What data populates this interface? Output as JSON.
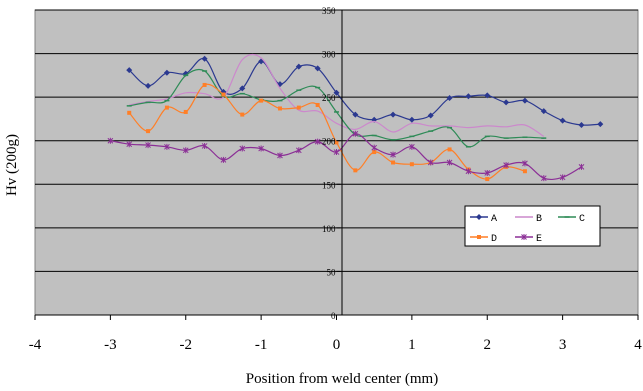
{
  "chart_data": {
    "type": "line",
    "title": "",
    "xlabel": "Position from weld center (mm)",
    "ylabel": "Hv (200g)",
    "xlim": [
      -4,
      4
    ],
    "ylim": [
      0,
      350
    ],
    "x_ticks": [
      "-4",
      "-3",
      "-2",
      "-1",
      "0",
      "1",
      "2",
      "3",
      "4"
    ],
    "y_ticks": [
      "0",
      "50",
      "100",
      "150",
      "200",
      "250",
      "300",
      "350"
    ],
    "grid": "horizontal",
    "legend_placement": "lower-right inside plot",
    "plot_background": "#c0c0c0",
    "series": [
      {
        "name": "A",
        "color": "#2b3990",
        "marker": "diamond",
        "points": [
          [
            -2.75,
            281
          ],
          [
            -2.5,
            263
          ],
          [
            -2.25,
            278
          ],
          [
            -2,
            277
          ],
          [
            -1.75,
            294
          ],
          [
            -1.5,
            256
          ],
          [
            -1.25,
            260
          ],
          [
            -1,
            291
          ],
          [
            -0.75,
            265
          ],
          [
            -0.5,
            285
          ],
          [
            -0.25,
            283
          ],
          [
            0,
            255
          ],
          [
            0.25,
            230
          ],
          [
            0.5,
            224
          ],
          [
            0.75,
            230
          ],
          [
            1,
            224
          ],
          [
            1.25,
            229
          ],
          [
            1.5,
            249
          ],
          [
            1.75,
            251
          ],
          [
            2,
            252
          ],
          [
            2.25,
            244
          ],
          [
            2.5,
            246
          ],
          [
            2.75,
            234
          ],
          [
            3,
            223
          ],
          [
            3.25,
            218
          ],
          [
            3.5,
            219
          ]
        ]
      },
      {
        "name": "B",
        "color": "#cc88cc",
        "marker": "none",
        "points": [
          [
            -2.75,
            241
          ],
          [
            -2.5,
            245
          ],
          [
            -2.25,
            248
          ],
          [
            -2,
            255
          ],
          [
            -1.75,
            254
          ],
          [
            -1.5,
            250
          ],
          [
            -1.25,
            293
          ],
          [
            -1,
            295
          ],
          [
            -0.75,
            260
          ],
          [
            -0.5,
            235
          ],
          [
            -0.25,
            234
          ],
          [
            0,
            220
          ],
          [
            0.25,
            213
          ],
          [
            0.5,
            222
          ],
          [
            0.75,
            210
          ],
          [
            1,
            220
          ],
          [
            1.25,
            217
          ],
          [
            1.5,
            217
          ],
          [
            1.75,
            215
          ],
          [
            2,
            217
          ],
          [
            2.25,
            216
          ],
          [
            2.5,
            218
          ],
          [
            2.75,
            205
          ]
        ]
      },
      {
        "name": "C",
        "color": "#2e8b57",
        "marker": "tick",
        "points": [
          [
            -2.75,
            240
          ],
          [
            -2.5,
            244
          ],
          [
            -2.25,
            246
          ],
          [
            -2,
            275
          ],
          [
            -1.75,
            280
          ],
          [
            -1.5,
            251
          ],
          [
            -1.25,
            254
          ],
          [
            -1,
            247
          ],
          [
            -0.75,
            246
          ],
          [
            -0.5,
            258
          ],
          [
            -0.25,
            261
          ],
          [
            0,
            233
          ],
          [
            0.25,
            207
          ],
          [
            0.5,
            206
          ],
          [
            0.75,
            201
          ],
          [
            1,
            205
          ],
          [
            1.25,
            211
          ],
          [
            1.5,
            215
          ],
          [
            1.75,
            193
          ],
          [
            2,
            205
          ],
          [
            2.25,
            203
          ],
          [
            2.5,
            204
          ],
          [
            2.75,
            203
          ]
        ]
      },
      {
        "name": "D",
        "color": "#ff7f27",
        "marker": "square",
        "points": [
          [
            -2.75,
            232
          ],
          [
            -2.5,
            211
          ],
          [
            -2.25,
            238
          ],
          [
            -2,
            233
          ],
          [
            -1.75,
            264
          ],
          [
            -1.5,
            253
          ],
          [
            -1.25,
            230
          ],
          [
            -1,
            246
          ],
          [
            -0.75,
            237
          ],
          [
            -0.5,
            238
          ],
          [
            -0.25,
            241
          ],
          [
            0,
            198
          ],
          [
            0.25,
            166
          ],
          [
            0.5,
            187
          ],
          [
            0.75,
            175
          ],
          [
            1,
            173
          ],
          [
            1.25,
            175
          ],
          [
            1.5,
            190
          ],
          [
            1.75,
            167
          ],
          [
            2,
            156
          ],
          [
            2.25,
            170
          ],
          [
            2.5,
            165
          ]
        ]
      },
      {
        "name": "E",
        "color": "#8b2f96",
        "marker": "star",
        "points": [
          [
            -3,
            200
          ],
          [
            -2.75,
            196
          ],
          [
            -2.5,
            195
          ],
          [
            -2.25,
            193
          ],
          [
            -2,
            189
          ],
          [
            -1.75,
            194
          ],
          [
            -1.5,
            178
          ],
          [
            -1.25,
            191
          ],
          [
            -1,
            191
          ],
          [
            -0.75,
            183
          ],
          [
            -0.5,
            189
          ],
          [
            -0.25,
            199
          ],
          [
            0,
            187
          ],
          [
            0.25,
            208
          ],
          [
            0.5,
            192
          ],
          [
            0.75,
            184
          ],
          [
            1,
            193
          ],
          [
            1.25,
            175
          ],
          [
            1.5,
            175
          ],
          [
            1.75,
            165
          ],
          [
            2,
            163
          ],
          [
            2.25,
            172
          ],
          [
            2.5,
            174
          ],
          [
            2.75,
            157
          ],
          [
            3,
            158
          ],
          [
            3.25,
            170
          ]
        ]
      }
    ]
  }
}
